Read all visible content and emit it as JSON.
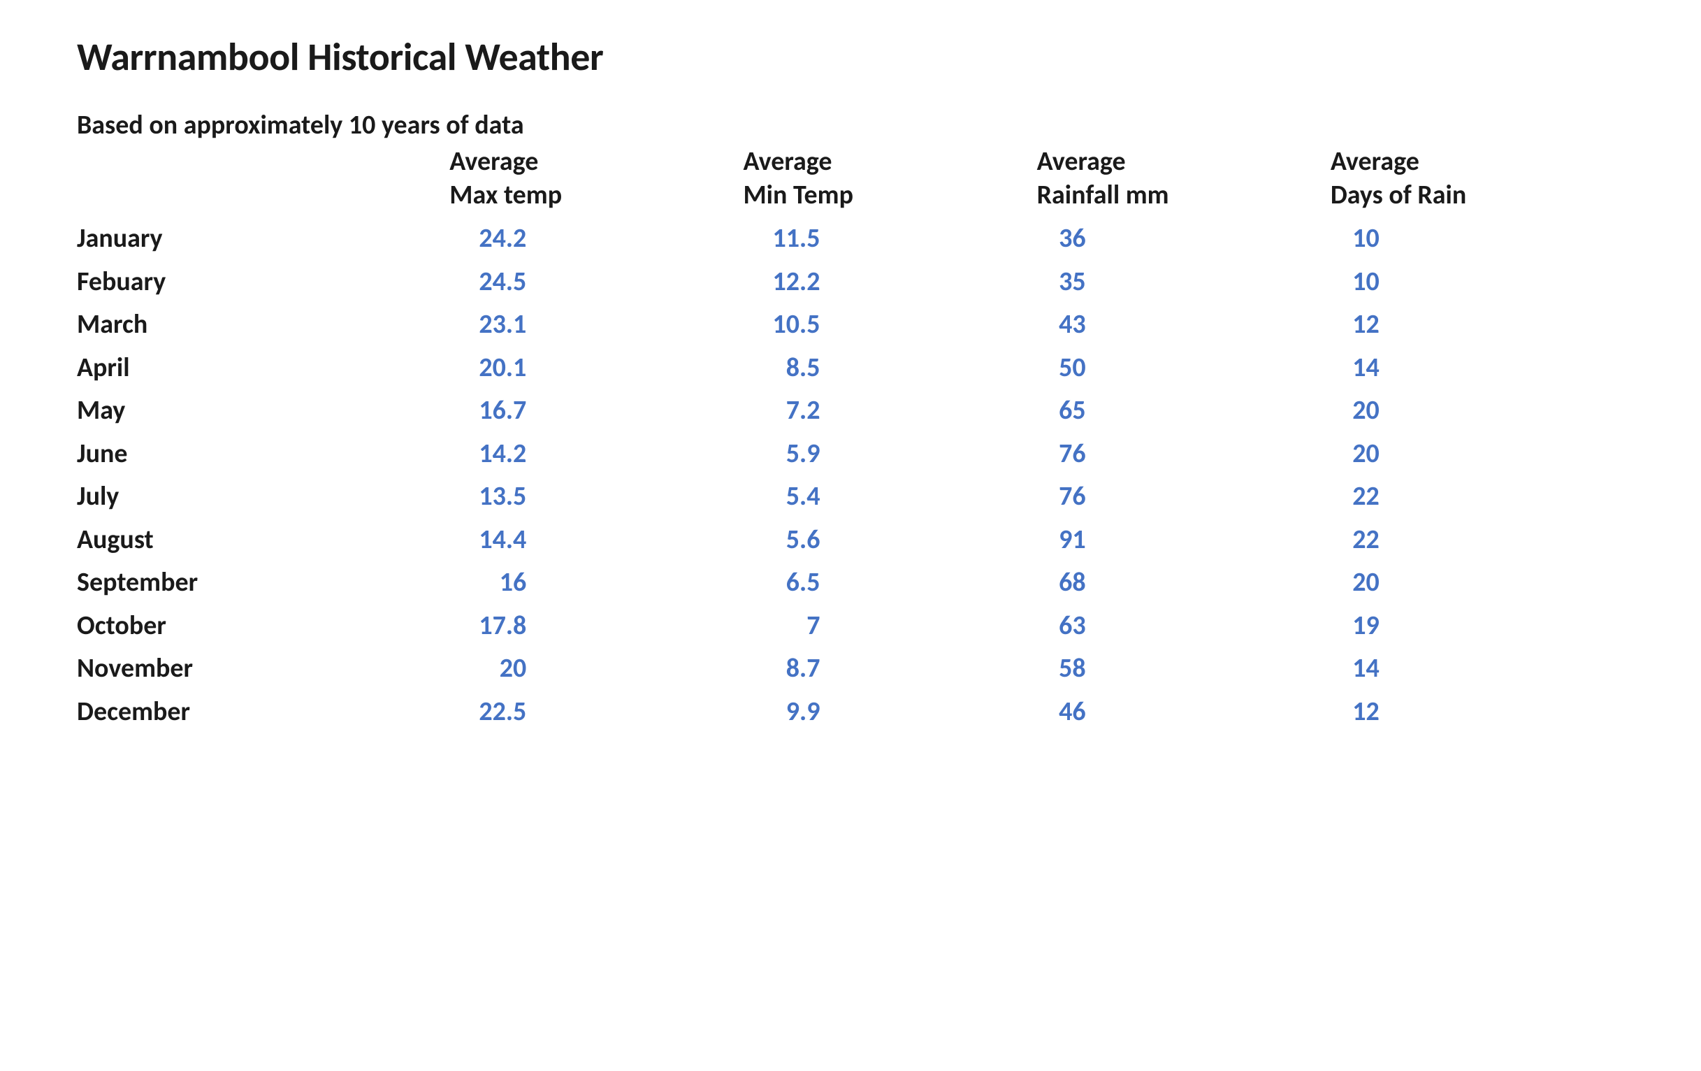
{
  "title": "Warrnambool Historical Weather",
  "subtitle": "Based on approximately 10 years of data",
  "table": {
    "type": "table",
    "background_color": "#ffffff",
    "header_color": "#1a1a1a",
    "month_color": "#1a1a1a",
    "value_color": "#4472c4",
    "header_fontsize": 38,
    "body_fontsize": 38,
    "font_weight": 700,
    "columns": [
      {
        "key": "month",
        "line1": "",
        "line2": ""
      },
      {
        "key": "max_temp",
        "line1": "Average",
        "line2": "Max temp"
      },
      {
        "key": "min_temp",
        "line1": "Average",
        "line2": "Min Temp"
      },
      {
        "key": "rainfall",
        "line1": "Average",
        "line2": "Rainfall mm"
      },
      {
        "key": "raindays",
        "line1": "Average",
        "line2": "Days of Rain"
      }
    ],
    "rows": [
      {
        "month": "January",
        "max_temp": "24.2",
        "min_temp": "11.5",
        "rainfall": "36",
        "raindays": "10"
      },
      {
        "month": "Febuary",
        "max_temp": "24.5",
        "min_temp": "12.2",
        "rainfall": "35",
        "raindays": "10"
      },
      {
        "month": "March",
        "max_temp": "23.1",
        "min_temp": "10.5",
        "rainfall": "43",
        "raindays": "12"
      },
      {
        "month": "April",
        "max_temp": "20.1",
        "min_temp": "8.5",
        "rainfall": "50",
        "raindays": "14"
      },
      {
        "month": "May",
        "max_temp": "16.7",
        "min_temp": "7.2",
        "rainfall": "65",
        "raindays": "20"
      },
      {
        "month": "June",
        "max_temp": "14.2",
        "min_temp": "5.9",
        "rainfall": "76",
        "raindays": "20"
      },
      {
        "month": "July",
        "max_temp": "13.5",
        "min_temp": "5.4",
        "rainfall": "76",
        "raindays": "22"
      },
      {
        "month": "August",
        "max_temp": "14.4",
        "min_temp": "5.6",
        "rainfall": "91",
        "raindays": "22"
      },
      {
        "month": "September",
        "max_temp": "16",
        "min_temp": "6.5",
        "rainfall": "68",
        "raindays": "20"
      },
      {
        "month": "October",
        "max_temp": "17.8",
        "min_temp": "7",
        "rainfall": "63",
        "raindays": "19"
      },
      {
        "month": "November",
        "max_temp": "20",
        "min_temp": "8.7",
        "rainfall": "58",
        "raindays": "14"
      },
      {
        "month": "December",
        "max_temp": "22.5",
        "min_temp": "9.9",
        "rainfall": "46",
        "raindays": "12"
      }
    ]
  }
}
